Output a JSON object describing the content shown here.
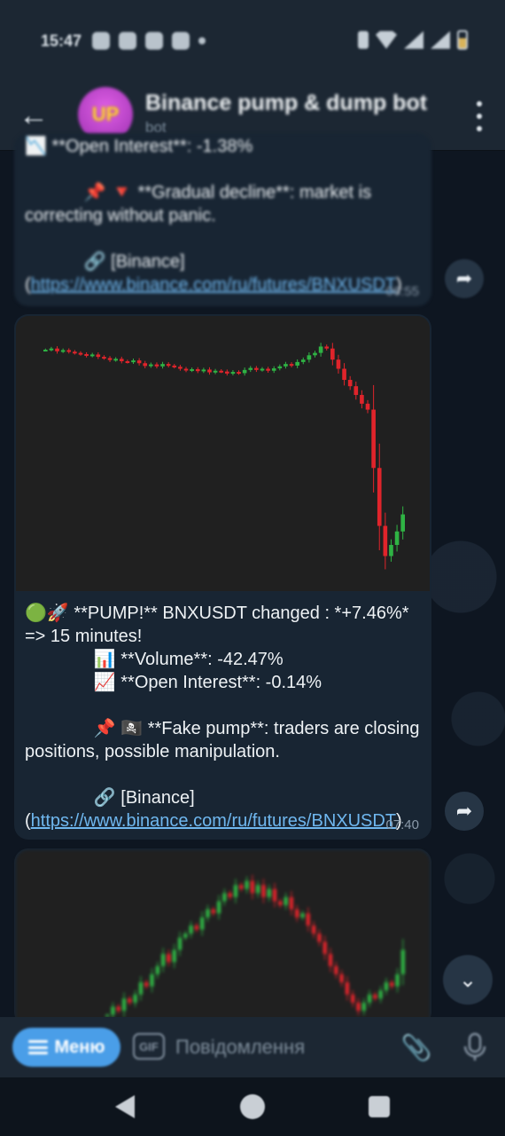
{
  "status": {
    "time": "15:47"
  },
  "header": {
    "back_icon": "arrow-left-icon",
    "avatar_text": "UP",
    "title": "Binance pump & dump bot",
    "subtitle": "bot",
    "menu_icon": "more-vertical-icon"
  },
  "messages": [
    {
      "text": "📉 **Open Interest**: -1.38%\n\n            📌 🔻 **Gradual decline**: market is correcting without panic.\n\n            🔗 [Binance](",
      "link": "https://www.binance.com/ru/futures/BNXUSDT",
      "link_suffix": ")",
      "time": "06:55"
    },
    {
      "text": "🟢🚀 **PUMP!** BNXUSDT changed : *+7.46%* => 15 minutes!\n              📊 **Volume**: -42.47%\n              📈 **Open Interest**: -0.14%\n\n              📌 🏴‍☠️ **Fake pump**: traders are closing positions, possible manipulation.\n\n              🔗 [Binance](",
      "link": "https://www.binance.com/ru/futures/BNXUSDT",
      "link_suffix": ")",
      "time": "07:40"
    }
  ],
  "input": {
    "menu_label": "Меню",
    "gif_label": "GIF",
    "placeholder": "Повідомлення"
  },
  "colors": {
    "up": "#2fb344",
    "down": "#e0242b",
    "bubble": "#182533",
    "link": "#6fb7ef",
    "accent": "#4a9ee8"
  },
  "chart_data": [
    {
      "type": "candlestick",
      "series_close": [
        100,
        100.3,
        99.6,
        99.9,
        99.5,
        99.2,
        98.9,
        98.5,
        98.8,
        98.2,
        97.9,
        97.4,
        97.7,
        97.1,
        96.9,
        97.3,
        96.6,
        95.9,
        96.3,
        95.8,
        96.4,
        96.0,
        95.7,
        95.2,
        94.8,
        95.1,
        94.6,
        95.0,
        94.3,
        94.7,
        94.5,
        94.0,
        94.4,
        94.1,
        94.9,
        95.4,
        94.9,
        95.2,
        94.7,
        95.3,
        95.8,
        96.4,
        96.0,
        96.9,
        97.5,
        98.6,
        99.2,
        100.8,
        100.3,
        97.5,
        95.2,
        92.4,
        90.8,
        88.6,
        86.4,
        84.9,
        70.2,
        55.6,
        48.0,
        50.8,
        54.2,
        58.5
      ]
    },
    {
      "type": "candlestick",
      "series_close": [
        40,
        42,
        41,
        44,
        43,
        45,
        48,
        47,
        50,
        52,
        55,
        53,
        56,
        59,
        60,
        62,
        61,
        64,
        66,
        65,
        68,
        70,
        69,
        72,
        71,
        73,
        70,
        72,
        69,
        71,
        68,
        67,
        69,
        66,
        64,
        65,
        62,
        60,
        58,
        55,
        52,
        50,
        48,
        45,
        43,
        41,
        43,
        45,
        44,
        46,
        48,
        47,
        50,
        56
      ]
    }
  ]
}
